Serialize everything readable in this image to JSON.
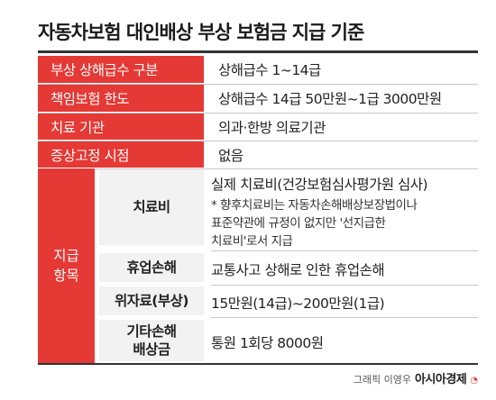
{
  "title": "자동차보험 대인배상 부상 보험금 지급 기준",
  "rows": [
    {
      "label": "부상 상해급수 구분",
      "value": "상해급수 1~14급"
    },
    {
      "label": "책임보험 한도",
      "value": "상해급수 14급 50만원~1급 3000만원"
    },
    {
      "label": "치료 기관",
      "value": "의과·한방 의료기관"
    },
    {
      "label": "증상고정 시점",
      "value": "없음"
    }
  ],
  "payment": {
    "label_line1": "지급",
    "label_line2": "항목",
    "items": [
      {
        "label": "치료비",
        "value": "실제 치료비(건강보험심사평가원 심사)",
        "note_line1": "* 향후치료비는 자동차손해배상보장법이나",
        "note_line2": "표준약관에 규정이 없지만 '선지급한",
        "note_line3": "치료비'로서 지급"
      },
      {
        "label": "휴업손해",
        "value": "교통사고 상해로 인한 휴업손해"
      },
      {
        "label": "위자료(부상)",
        "value": "15만원(14급)~200만원(1급)"
      },
      {
        "label_line1": "기타손해",
        "label_line2": "배상금",
        "value": "통원 1회당 8000원"
      }
    ]
  },
  "credit": {
    "text": "그래픽 이영우",
    "brand": "아시아경제"
  },
  "colors": {
    "accent": "#e53935",
    "sub_label_bg": "#f2f2f2"
  }
}
